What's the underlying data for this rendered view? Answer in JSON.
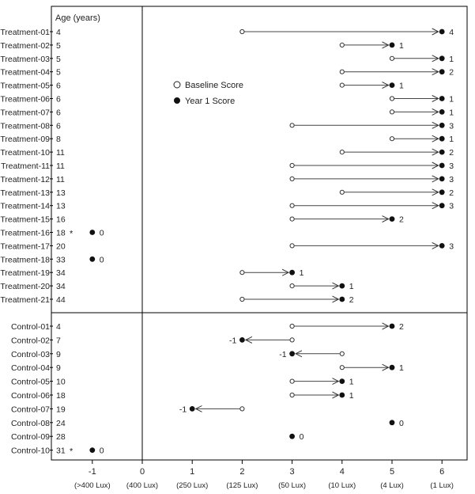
{
  "chart_data": {
    "type": "dumbbell",
    "column_header": "Age (years)",
    "xlim": [
      -1.6,
      6.5
    ],
    "ticks": [
      {
        "value": -1,
        "label": "-1",
        "sublabel": "(>400 Lux)"
      },
      {
        "value": 0,
        "label": "0",
        "sublabel": "(400 Lux)"
      },
      {
        "value": 1,
        "label": "1",
        "sublabel": "(250 Lux)"
      },
      {
        "value": 2,
        "label": "2",
        "sublabel": "(125 Lux)"
      },
      {
        "value": 3,
        "label": "3",
        "sublabel": "(50 Lux)"
      },
      {
        "value": 4,
        "label": "4",
        "sublabel": "(10 Lux)"
      },
      {
        "value": 5,
        "label": "5",
        "sublabel": "(4 Lux)"
      },
      {
        "value": 6,
        "label": "6",
        "sublabel": "(1 Lux)"
      }
    ],
    "legend": [
      {
        "name": "Baseline Score",
        "marker": "open-circle"
      },
      {
        "name": "Year 1 Score",
        "marker": "filled-circle"
      }
    ],
    "legend_position": "upper-middle",
    "asterisk_symbol": "*",
    "groups": [
      {
        "name": "Treatment",
        "subjects": [
          {
            "label": "Treatment-01",
            "age": "4",
            "baseline": 2,
            "year1": 6,
            "change": "4"
          },
          {
            "label": "Treatment-02",
            "age": "5",
            "baseline": 4,
            "year1": 5,
            "change": "1"
          },
          {
            "label": "Treatment-03",
            "age": "5",
            "baseline": 5,
            "year1": 6,
            "change": "1"
          },
          {
            "label": "Treatment-04",
            "age": "5",
            "baseline": 4,
            "year1": 6,
            "change": "2"
          },
          {
            "label": "Treatment-05",
            "age": "6",
            "baseline": 4,
            "year1": 5,
            "change": "1"
          },
          {
            "label": "Treatment-06",
            "age": "6",
            "baseline": 5,
            "year1": 6,
            "change": "1"
          },
          {
            "label": "Treatment-07",
            "age": "6",
            "baseline": 5,
            "year1": 6,
            "change": "1"
          },
          {
            "label": "Treatment-08",
            "age": "6",
            "baseline": 3,
            "year1": 6,
            "change": "3"
          },
          {
            "label": "Treatment-09",
            "age": "8",
            "baseline": 5,
            "year1": 6,
            "change": "1"
          },
          {
            "label": "Treatment-10",
            "age": "11",
            "baseline": 4,
            "year1": 6,
            "change": "2"
          },
          {
            "label": "Treatment-11",
            "age": "11",
            "baseline": 3,
            "year1": 6,
            "change": "3"
          },
          {
            "label": "Treatment-12",
            "age": "11",
            "baseline": 3,
            "year1": 6,
            "change": "3"
          },
          {
            "label": "Treatment-13",
            "age": "13",
            "baseline": 4,
            "year1": 6,
            "change": "2"
          },
          {
            "label": "Treatment-14",
            "age": "13",
            "baseline": 3,
            "year1": 6,
            "change": "3"
          },
          {
            "label": "Treatment-15",
            "age": "16",
            "baseline": 3,
            "year1": 5,
            "change": "2"
          },
          {
            "label": "Treatment-16",
            "age": "18",
            "baseline": null,
            "year1": -1,
            "change": "0",
            "asterisk": true
          },
          {
            "label": "Treatment-17",
            "age": "20",
            "baseline": 3,
            "year1": 6,
            "change": "3"
          },
          {
            "label": "Treatment-18",
            "age": "33",
            "baseline": null,
            "year1": -1,
            "change": "0"
          },
          {
            "label": "Treatment-19",
            "age": "34",
            "baseline": 2,
            "year1": 3,
            "change": "1"
          },
          {
            "label": "Treatment-20",
            "age": "34",
            "baseline": 3,
            "year1": 4,
            "change": "1"
          },
          {
            "label": "Treatment-21",
            "age": "44",
            "baseline": 2,
            "year1": 4,
            "change": "2"
          }
        ]
      },
      {
        "name": "Control",
        "subjects": [
          {
            "label": "Control-01",
            "age": "4",
            "baseline": 3,
            "year1": 5,
            "change": "2"
          },
          {
            "label": "Control-02",
            "age": "7",
            "baseline": 3,
            "year1": 2,
            "change": "-1"
          },
          {
            "label": "Control-03",
            "age": "9",
            "baseline": 4,
            "year1": 3,
            "change": "-1"
          },
          {
            "label": "Control-04",
            "age": "9",
            "baseline": 4,
            "year1": 5,
            "change": "1"
          },
          {
            "label": "Control-05",
            "age": "10",
            "baseline": 3,
            "year1": 4,
            "change": "1"
          },
          {
            "label": "Control-06",
            "age": "18",
            "baseline": 3,
            "year1": 4,
            "change": "1"
          },
          {
            "label": "Control-07",
            "age": "19",
            "baseline": 2,
            "year1": 1,
            "change": "-1"
          },
          {
            "label": "Control-08",
            "age": "24",
            "baseline": null,
            "year1": 5,
            "change": "0"
          },
          {
            "label": "Control-09",
            "age": "28",
            "baseline": null,
            "year1": 3,
            "change": "0"
          },
          {
            "label": "Control-10",
            "age": "31",
            "baseline": null,
            "year1": -1,
            "change": "0",
            "asterisk": true
          }
        ]
      }
    ]
  }
}
